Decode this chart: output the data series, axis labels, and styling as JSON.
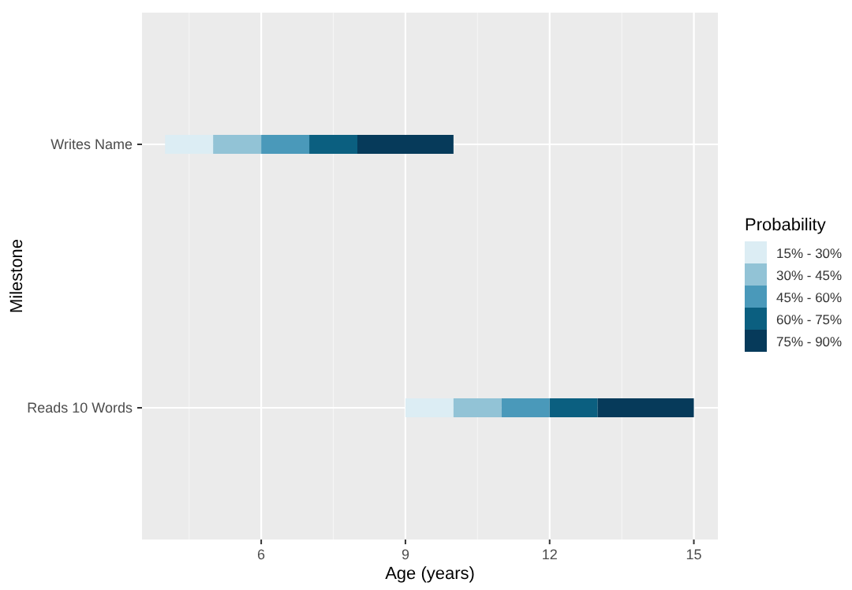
{
  "chart_data": {
    "type": "bar",
    "orientation": "horizontal",
    "xlabel": "Age (years)",
    "ylabel": "Milestone",
    "legend_title": "Probability",
    "categories": [
      "Writes Name",
      "Reads 10 Words"
    ],
    "series": [
      {
        "name": "15% - 30%",
        "color": "#dcedf4",
        "base": [
          4,
          9
        ],
        "values": [
          1,
          1
        ]
      },
      {
        "name": "30% - 45%",
        "color": "#92c3d6",
        "base": [
          5,
          10
        ],
        "values": [
          1,
          1
        ]
      },
      {
        "name": "45% - 60%",
        "color": "#4a99ba",
        "base": [
          6,
          11
        ],
        "values": [
          1,
          1
        ]
      },
      {
        "name": "60% - 75%",
        "color": "#0b5f80",
        "base": [
          7,
          12
        ],
        "values": [
          1,
          1
        ]
      },
      {
        "name": "75% - 90%",
        "color": "#063a5a",
        "base": [
          8,
          13
        ],
        "values": [
          2,
          2
        ]
      }
    ],
    "xlim": [
      3.52,
      15.5
    ],
    "xticks": [
      6,
      9,
      12,
      15
    ],
    "grid": true,
    "legend": "right"
  }
}
